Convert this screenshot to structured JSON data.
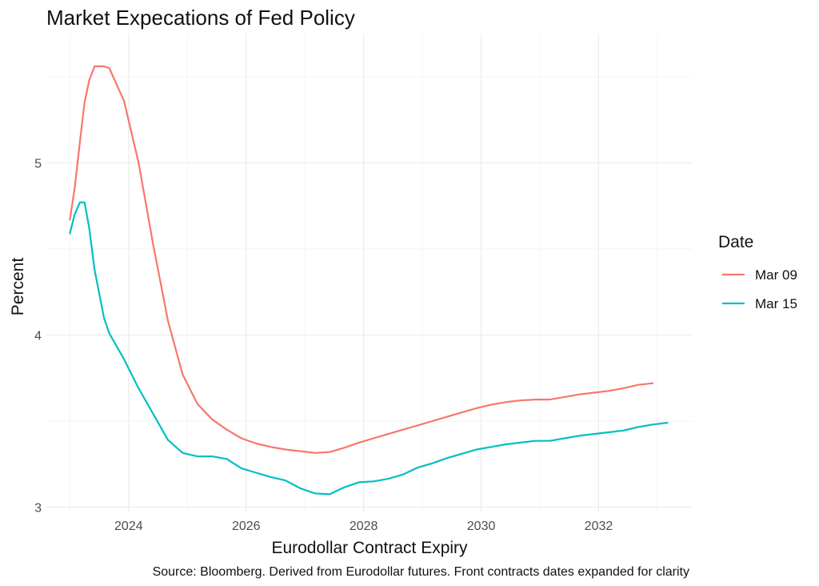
{
  "chart_data": {
    "type": "line",
    "title": "Market Expecations of Fed Policy",
    "xlabel": "Eurodollar Contract Expiry",
    "ylabel": "Percent",
    "caption": "Source: Bloomberg. Derived from Eurodollar futures. Front contracts dates expanded for clarity",
    "xlim": [
      2022.6,
      2033.6
    ],
    "ylim": [
      2.97,
      5.75
    ],
    "x_ticks": [
      2024,
      2026,
      2028,
      2030,
      2032
    ],
    "x_tick_labels": [
      "2024",
      "2026",
      "2028",
      "2030",
      "2032"
    ],
    "y_ticks": [
      3,
      4,
      5
    ],
    "y_tick_labels": [
      "3",
      "4",
      "5"
    ],
    "grid": true,
    "legend": {
      "title": "Date",
      "placement": "right"
    },
    "series": [
      {
        "name": "Mar 09",
        "color": "#F8766D",
        "x": [
          2023.0,
          2023.08,
          2023.17,
          2023.25,
          2023.33,
          2023.42,
          2023.5,
          2023.58,
          2023.67,
          2023.92,
          2024.17,
          2024.42,
          2024.67,
          2024.92,
          2025.17,
          2025.42,
          2025.67,
          2025.92,
          2026.17,
          2026.42,
          2026.67,
          2026.92,
          2027.17,
          2027.42,
          2027.67,
          2027.92,
          2028.17,
          2028.42,
          2028.67,
          2028.92,
          2029.17,
          2029.42,
          2029.67,
          2029.92,
          2030.17,
          2030.42,
          2030.67,
          2030.92,
          2031.17,
          2031.42,
          2031.67,
          2031.92,
          2032.17,
          2032.42,
          2032.67,
          2032.92
        ],
        "y": [
          4.67,
          4.85,
          5.12,
          5.35,
          5.48,
          5.56,
          5.56,
          5.56,
          5.55,
          5.36,
          5.0,
          4.52,
          4.08,
          3.77,
          3.6,
          3.51,
          3.45,
          3.4,
          3.37,
          3.35,
          3.335,
          3.325,
          3.315,
          3.32,
          3.345,
          3.375,
          3.4,
          3.425,
          3.45,
          3.475,
          3.5,
          3.525,
          3.55,
          3.575,
          3.595,
          3.61,
          3.62,
          3.625,
          3.625,
          3.64,
          3.655,
          3.665,
          3.675,
          3.69,
          3.71,
          3.72
        ]
      },
      {
        "name": "Mar 15",
        "color": "#00BFC4",
        "x": [
          2023.0,
          2023.08,
          2023.17,
          2023.25,
          2023.33,
          2023.42,
          2023.58,
          2023.67,
          2023.92,
          2024.17,
          2024.42,
          2024.67,
          2024.92,
          2025.17,
          2025.42,
          2025.67,
          2025.92,
          2026.17,
          2026.42,
          2026.67,
          2026.92,
          2027.17,
          2027.42,
          2027.67,
          2027.92,
          2028.17,
          2028.42,
          2028.67,
          2028.92,
          2029.17,
          2029.42,
          2029.67,
          2029.92,
          2030.17,
          2030.42,
          2030.67,
          2030.92,
          2031.17,
          2031.42,
          2031.67,
          2031.92,
          2032.17,
          2032.42,
          2032.67,
          2032.92,
          2033.17
        ],
        "y": [
          4.59,
          4.7,
          4.77,
          4.77,
          4.62,
          4.38,
          4.1,
          4.01,
          3.86,
          3.69,
          3.54,
          3.39,
          3.315,
          3.295,
          3.295,
          3.28,
          3.225,
          3.2,
          3.175,
          3.155,
          3.11,
          3.08,
          3.075,
          3.115,
          3.145,
          3.15,
          3.165,
          3.19,
          3.23,
          3.255,
          3.285,
          3.31,
          3.335,
          3.35,
          3.365,
          3.375,
          3.385,
          3.385,
          3.4,
          3.415,
          3.425,
          3.435,
          3.445,
          3.465,
          3.48,
          3.49
        ]
      }
    ]
  }
}
